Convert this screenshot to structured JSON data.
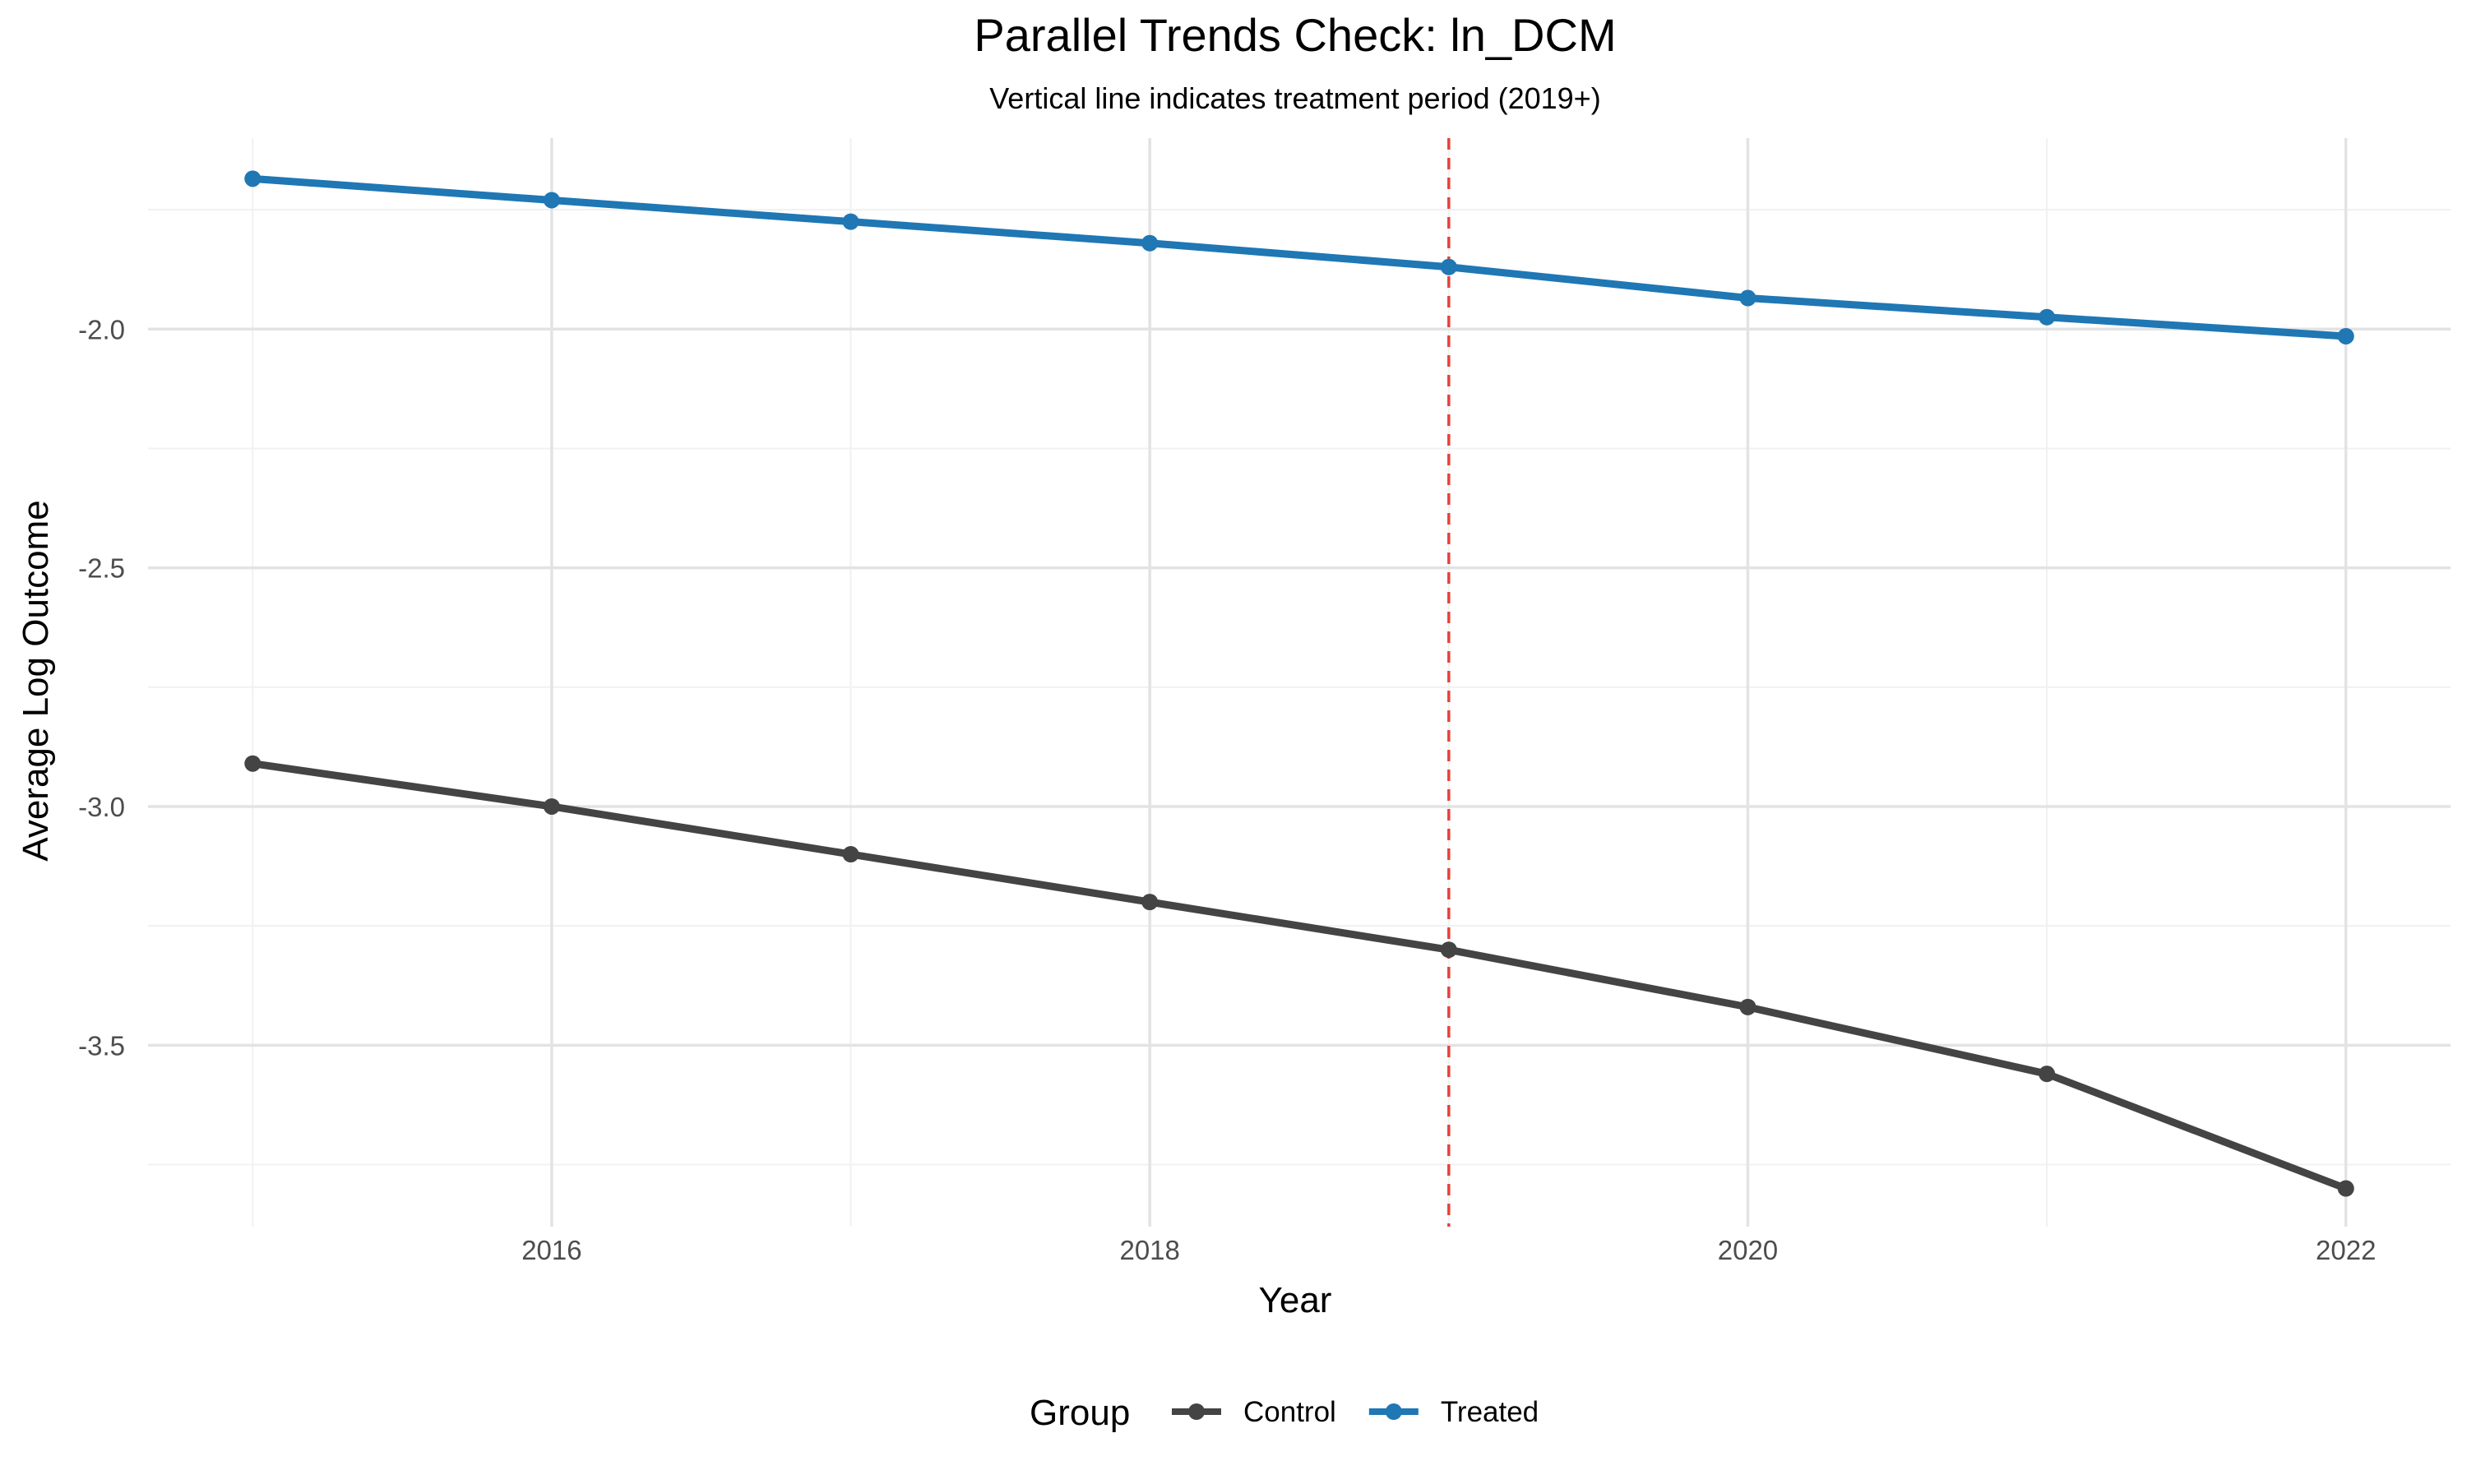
{
  "chart_data": {
    "type": "line",
    "title": "Parallel Trends Check: ln_DCM",
    "subtitle": "Vertical line indicates treatment period (2019+)",
    "xlabel": "Year",
    "ylabel": "Average Log Outcome",
    "x": [
      2015,
      2016,
      2017,
      2018,
      2019,
      2020,
      2021,
      2022
    ],
    "x_ticks": [
      2016,
      2018,
      2020,
      2022
    ],
    "y_ticks": [
      -2.0,
      -2.5,
      -3.0,
      -3.5
    ],
    "y_tick_labels": [
      "-2.0",
      "-2.5",
      "-3.0",
      "-3.5"
    ],
    "xlim": [
      2014.65,
      2022.35
    ],
    "ylim": [
      -3.88,
      -1.6
    ],
    "grid": true,
    "vline": {
      "x": 2019,
      "color": "#e8413c",
      "style": "dashed"
    },
    "legend": {
      "title": "Group",
      "position": "bottom"
    },
    "series": [
      {
        "name": "Control",
        "color": "#444444",
        "values": [
          -2.91,
          -3.0,
          -3.1,
          -3.2,
          -3.3,
          -3.42,
          -3.56,
          -3.8
        ]
      },
      {
        "name": "Treated",
        "color": "#1f77b4",
        "values": [
          -1.685,
          -1.73,
          -1.775,
          -1.82,
          -1.87,
          -1.935,
          -1.975,
          -2.015
        ]
      }
    ]
  }
}
